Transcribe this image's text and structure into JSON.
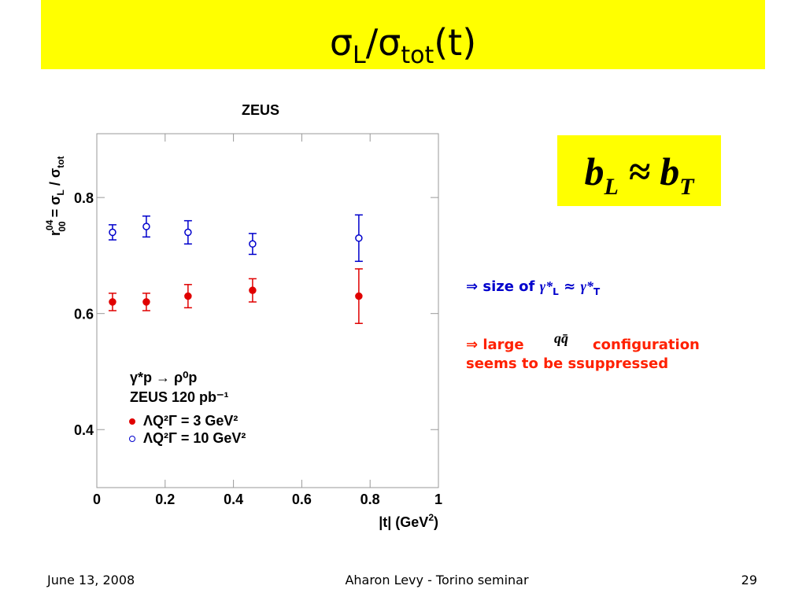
{
  "slide": {
    "title": [
      "σ",
      "L",
      "/σ",
      "tot",
      "(t)"
    ],
    "formula": [
      "b",
      "L",
      " ≈ b",
      "T"
    ],
    "bullet1": [
      "⇒ size of ",
      "γ*",
      "L",
      " ≈ ",
      "γ*",
      "T"
    ],
    "bullet2": [
      "⇒ large",
      "qq̄",
      "configuration",
      "seems to be  ssuppressed"
    ],
    "footer": {
      "date": "June 13, 2008",
      "center": "Aharon Levy - Torino seminar",
      "page": "29"
    }
  },
  "chart_data": {
    "type": "scatter",
    "title": "ZEUS",
    "ylabel": [
      "r",
      "04",
      "00",
      " = σ",
      "L",
      " / σ",
      "tot"
    ],
    "xlabel": [
      "|t| (GeV",
      "2",
      ")"
    ],
    "legend_header": [
      "γ*p → ρ⁰p",
      "ZEUS 120 pb⁻¹"
    ],
    "x": [
      0.046,
      0.145,
      0.267,
      0.456,
      0.767
    ],
    "series": [
      {
        "name": "ΛQ²Γ = 3 GeV²",
        "color": "#e00000",
        "marker": "filled",
        "values": [
          0.62,
          0.62,
          0.63,
          0.64,
          0.63
        ],
        "errors": [
          0.015,
          0.015,
          0.02,
          0.02,
          0.047
        ]
      },
      {
        "name": "ΛQ²Γ = 10 GeV²",
        "color": "#0000cc",
        "marker": "open",
        "values": [
          0.74,
          0.75,
          0.74,
          0.72,
          0.73
        ],
        "errors": [
          0.013,
          0.018,
          0.02,
          0.018,
          0.04
        ]
      }
    ],
    "xlim": [
      0,
      1
    ],
    "xticks": [
      0,
      0.2,
      0.4,
      0.6,
      0.8,
      1
    ],
    "ylim": [
      0.3,
      0.91
    ],
    "yticks": [
      0.4,
      0.6,
      0.8
    ]
  }
}
